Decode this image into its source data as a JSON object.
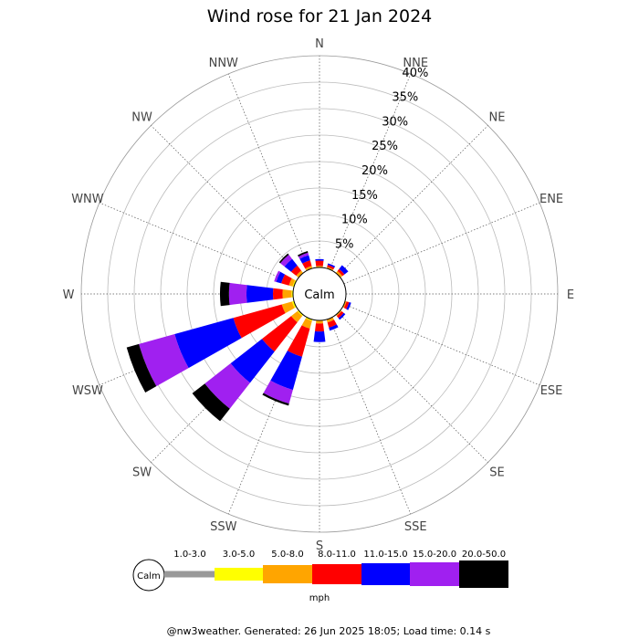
{
  "title": "Wind rose for 21 Jan 2024",
  "calm_label": "Calm",
  "footer": "@nw3weather. Generated: 26 Jun 2025 18:05; Load time: 0.14 s",
  "units": "mph",
  "chart_data": {
    "type": "windrose",
    "title": "Wind rose for 21 Jan 2024",
    "directions": [
      "N",
      "NNE",
      "NE",
      "ENE",
      "E",
      "ESE",
      "SE",
      "SSE",
      "S",
      "SSW",
      "SW",
      "WSW",
      "W",
      "WNW",
      "NW",
      "NNW"
    ],
    "rings": [
      "5%",
      "10%",
      "15%",
      "20%",
      "25%",
      "30%",
      "35%",
      "40%"
    ],
    "rmax_percent": 40,
    "speed_bins": [
      {
        "label": "1.0-3.0",
        "color": "#999999"
      },
      {
        "label": "3.0-5.0",
        "color": "#ffff00"
      },
      {
        "label": "5.0-8.0",
        "color": "#ffa500"
      },
      {
        "label": "8.0-11.0",
        "color": "#ff0000"
      },
      {
        "label": "11.0-15.0",
        "color": "#0000ff"
      },
      {
        "label": "15.0-20.0",
        "color": "#a020f0"
      },
      {
        "label": "20.0-50.0",
        "color": "#000000"
      }
    ],
    "series": [
      {
        "dir": "N",
        "values": [
          0,
          0,
          0.3,
          1.0,
          0.3,
          0,
          0
        ]
      },
      {
        "dir": "NNE",
        "values": [
          0,
          0,
          0.3,
          0.4,
          0.3,
          0,
          0
        ]
      },
      {
        "dir": "NE",
        "values": [
          0,
          0,
          0.5,
          0.5,
          0.9,
          0,
          0
        ]
      },
      {
        "dir": "ENE",
        "values": [
          0,
          0,
          0,
          0,
          0,
          0,
          0
        ]
      },
      {
        "dir": "E",
        "values": [
          0,
          0,
          0,
          0,
          0,
          0,
          0
        ]
      },
      {
        "dir": "ESE",
        "values": [
          0,
          0,
          0.3,
          0.5,
          0.4,
          0,
          0
        ]
      },
      {
        "dir": "SE",
        "values": [
          0,
          0,
          0.3,
          0.5,
          0.4,
          0,
          0
        ]
      },
      {
        "dir": "SSE",
        "values": [
          0,
          0,
          0.6,
          1.0,
          0.6,
          0,
          0
        ]
      },
      {
        "dir": "S",
        "values": [
          0,
          0,
          0.6,
          1.5,
          2.0,
          0,
          0
        ]
      },
      {
        "dir": "SSW",
        "values": [
          0,
          0.3,
          1.5,
          5.5,
          6.5,
          2.7,
          0.4
        ]
      },
      {
        "dir": "SW",
        "values": [
          0,
          0.3,
          1.5,
          7.0,
          7.5,
          6.2,
          3.0
        ]
      },
      {
        "dir": "WSW",
        "values": [
          0,
          0.4,
          2.0,
          9.5,
          11.5,
          7.0,
          2.4
        ]
      },
      {
        "dir": "W",
        "values": [
          0,
          0.3,
          1.7,
          1.8,
          5.0,
          3.3,
          1.7
        ]
      },
      {
        "dir": "WNW",
        "values": [
          0,
          0.3,
          0.7,
          1.5,
          1.0,
          0.4,
          0
        ]
      },
      {
        "dir": "NW",
        "values": [
          0,
          0,
          0.6,
          1.2,
          1.6,
          1.0,
          0.3
        ]
      },
      {
        "dir": "NNW",
        "values": [
          0,
          0,
          0.5,
          1.1,
          1.0,
          0.5,
          0.3
        ]
      }
    ]
  }
}
